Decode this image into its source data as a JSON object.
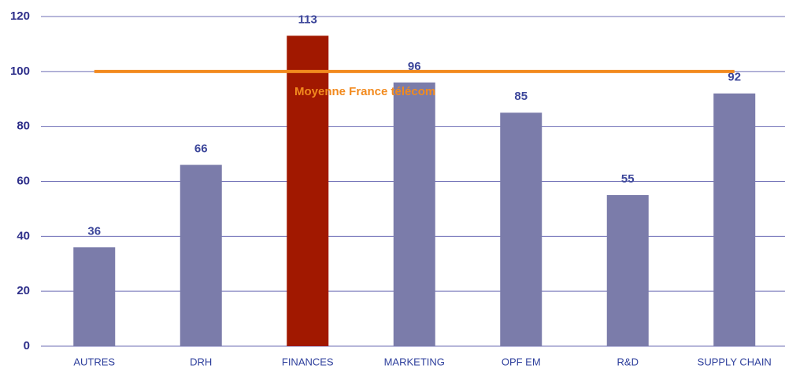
{
  "chart_data": {
    "type": "bar",
    "categories": [
      "AUTRES",
      "DRH",
      "FINANCES",
      "MARKETING",
      "OPF EM",
      "R&D",
      "SUPPLY CHAIN"
    ],
    "values": [
      36,
      66,
      113,
      96,
      85,
      55,
      92
    ],
    "colors": [
      "#7b7caa",
      "#7b7caa",
      "#a11800",
      "#7b7caa",
      "#7b7caa",
      "#7b7caa",
      "#7b7caa"
    ],
    "ylim": [
      0,
      120
    ],
    "yticks": [
      0,
      20,
      40,
      60,
      80,
      100,
      120
    ],
    "grid": true,
    "reference_line": {
      "value": 100,
      "label": "Moyenne France télécom",
      "color": "#f28a1e"
    }
  }
}
